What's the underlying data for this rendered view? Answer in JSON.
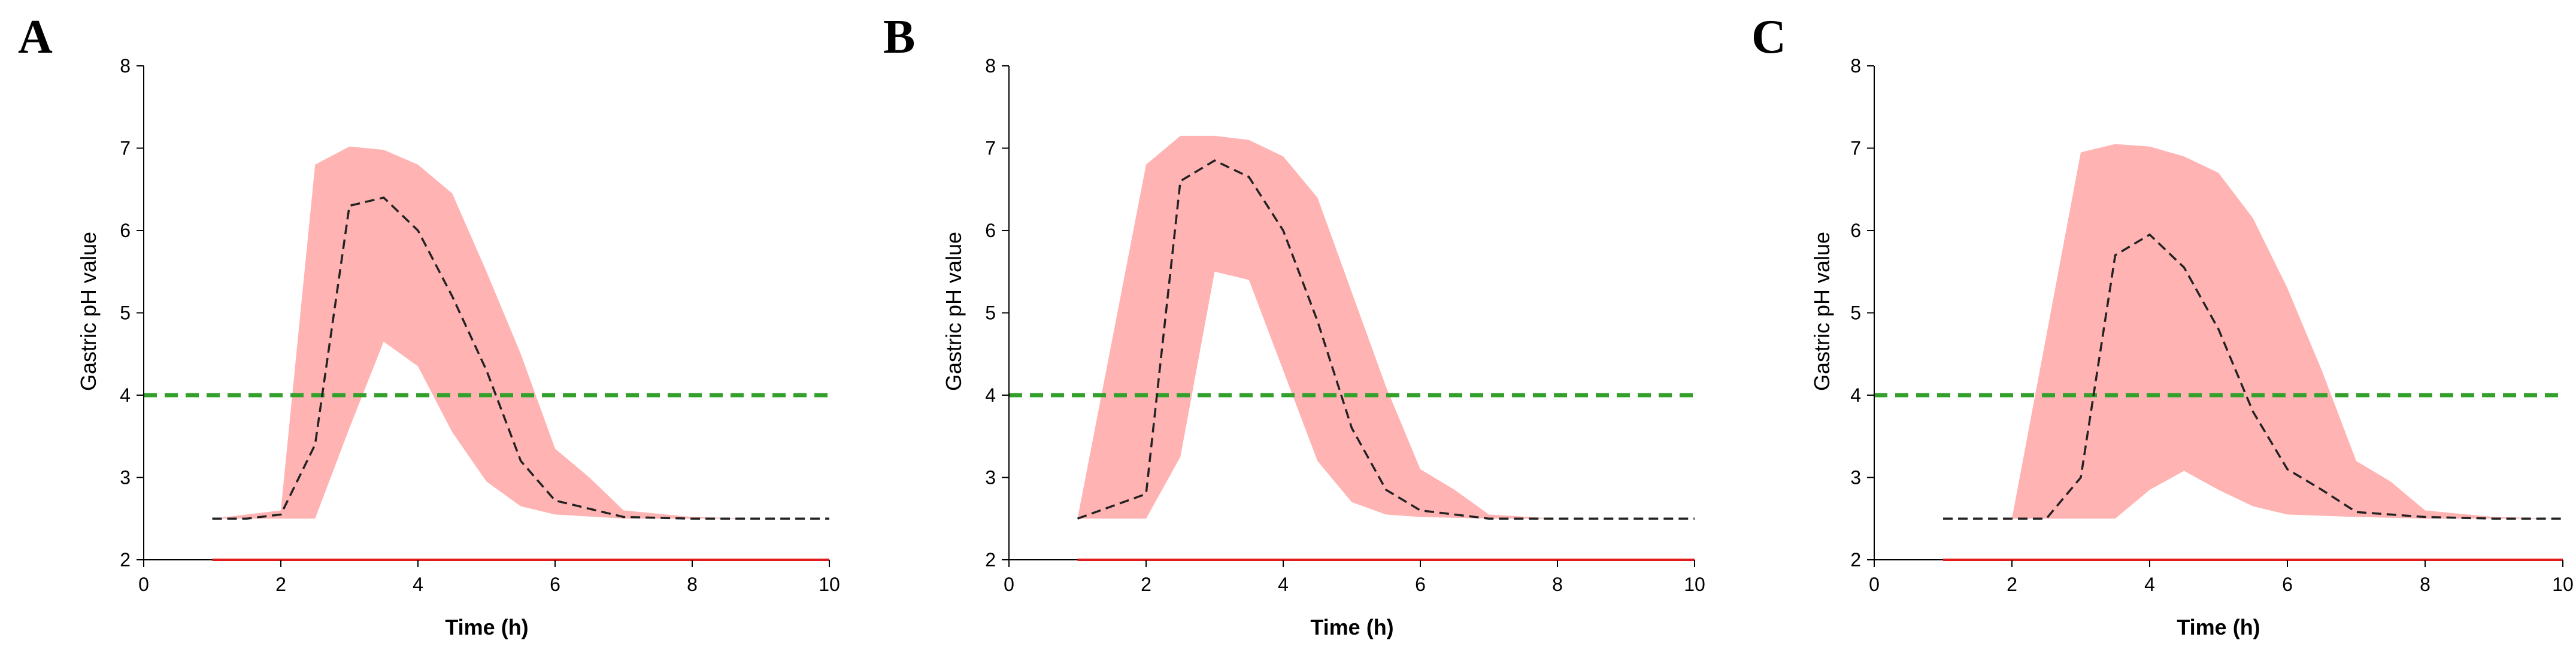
{
  "chart_data": [
    {
      "type": "area",
      "panel_label": "A",
      "xlabel": "Time (h)",
      "ylabel": "Gastric pH value",
      "xlim": [
        0,
        10
      ],
      "ylim": [
        2,
        8
      ],
      "xticks": [
        0,
        2,
        4,
        6,
        8,
        10
      ],
      "yticks": [
        2,
        3,
        4,
        5,
        6,
        7,
        8
      ],
      "band": {
        "color": "#ffb3b3",
        "upper": [
          [
            1,
            2.5
          ],
          [
            1.5,
            2.55
          ],
          [
            2,
            2.6
          ],
          [
            2.5,
            6.8
          ],
          [
            3,
            7.02
          ],
          [
            3.5,
            6.98
          ],
          [
            4,
            6.8
          ],
          [
            4.5,
            6.45
          ],
          [
            5,
            5.5
          ],
          [
            5.5,
            4.5
          ],
          [
            6,
            3.35
          ],
          [
            6.5,
            3.0
          ],
          [
            7,
            2.6
          ],
          [
            8,
            2.52
          ],
          [
            9,
            2.5
          ],
          [
            10,
            2.5
          ]
        ],
        "lower": [
          [
            1,
            2.5
          ],
          [
            1.5,
            2.5
          ],
          [
            2,
            2.5
          ],
          [
            2.5,
            2.5
          ],
          [
            3,
            3.6
          ],
          [
            3.5,
            4.65
          ],
          [
            4,
            4.35
          ],
          [
            4.5,
            3.55
          ],
          [
            5,
            2.95
          ],
          [
            5.5,
            2.65
          ],
          [
            6,
            2.55
          ],
          [
            7,
            2.5
          ],
          [
            8,
            2.5
          ],
          [
            9,
            2.5
          ],
          [
            10,
            2.5
          ]
        ]
      },
      "median": {
        "color": "#222222",
        "points": [
          [
            1,
            2.5
          ],
          [
            1.5,
            2.5
          ],
          [
            2,
            2.55
          ],
          [
            2.5,
            3.4
          ],
          [
            3,
            6.3
          ],
          [
            3.5,
            6.4
          ],
          [
            4,
            6.0
          ],
          [
            4.5,
            5.2
          ],
          [
            5,
            4.3
          ],
          [
            5.5,
            3.2
          ],
          [
            6,
            2.72
          ],
          [
            6.5,
            2.62
          ],
          [
            7,
            2.52
          ],
          [
            8,
            2.5
          ],
          [
            9,
            2.5
          ],
          [
            10,
            2.5
          ]
        ]
      },
      "threshold": {
        "y": 4,
        "color": "#33a02c"
      },
      "baseline": {
        "y": 2,
        "color": "#e31a1c",
        "x_start": 1,
        "x_end": 10
      }
    },
    {
      "type": "area",
      "panel_label": "B",
      "xlabel": "Time (h)",
      "ylabel": "Gastric pH value",
      "xlim": [
        0,
        10
      ],
      "ylim": [
        2,
        8
      ],
      "xticks": [
        0,
        2,
        4,
        6,
        8,
        10
      ],
      "yticks": [
        2,
        3,
        4,
        5,
        6,
        7,
        8
      ],
      "band": {
        "color": "#ffb3b3",
        "upper": [
          [
            1,
            2.5
          ],
          [
            2,
            6.8
          ],
          [
            2.5,
            7.15
          ],
          [
            3,
            7.15
          ],
          [
            3.5,
            7.1
          ],
          [
            4,
            6.9
          ],
          [
            4.5,
            6.4
          ],
          [
            5,
            5.25
          ],
          [
            5.5,
            4.1
          ],
          [
            6,
            3.1
          ],
          [
            6.5,
            2.85
          ],
          [
            7,
            2.55
          ],
          [
            8,
            2.5
          ],
          [
            9,
            2.5
          ],
          [
            10,
            2.5
          ]
        ],
        "lower": [
          [
            1,
            2.5
          ],
          [
            1.5,
            2.5
          ],
          [
            2,
            2.5
          ],
          [
            2.5,
            3.25
          ],
          [
            3,
            5.5
          ],
          [
            3.5,
            5.4
          ],
          [
            4,
            4.3
          ],
          [
            4.5,
            3.2
          ],
          [
            5,
            2.7
          ],
          [
            5.5,
            2.55
          ],
          [
            6,
            2.52
          ],
          [
            7,
            2.5
          ],
          [
            8,
            2.5
          ],
          [
            9,
            2.5
          ],
          [
            10,
            2.5
          ]
        ]
      },
      "median": {
        "color": "#222222",
        "points": [
          [
            1,
            2.5
          ],
          [
            1.5,
            2.65
          ],
          [
            2,
            2.8
          ],
          [
            2.5,
            6.6
          ],
          [
            3,
            6.85
          ],
          [
            3.5,
            6.65
          ],
          [
            4,
            6.0
          ],
          [
            4.5,
            4.9
          ],
          [
            5,
            3.6
          ],
          [
            5.5,
            2.85
          ],
          [
            6,
            2.6
          ],
          [
            6.5,
            2.55
          ],
          [
            7,
            2.5
          ],
          [
            8,
            2.5
          ],
          [
            9,
            2.5
          ],
          [
            10,
            2.5
          ]
        ]
      },
      "threshold": {
        "y": 4,
        "color": "#33a02c"
      },
      "baseline": {
        "y": 2,
        "color": "#e31a1c",
        "x_start": 1,
        "x_end": 10
      }
    },
    {
      "type": "area",
      "panel_label": "C",
      "xlabel": "Time (h)",
      "ylabel": "Gastric pH value",
      "xlim": [
        0,
        10
      ],
      "ylim": [
        2,
        8
      ],
      "xticks": [
        0,
        2,
        4,
        6,
        8,
        10
      ],
      "yticks": [
        2,
        3,
        4,
        5,
        6,
        7,
        8
      ],
      "band": {
        "color": "#ffb3b3",
        "upper": [
          [
            2,
            2.5
          ],
          [
            3,
            6.95
          ],
          [
            3.5,
            7.05
          ],
          [
            4,
            7.02
          ],
          [
            4.5,
            6.9
          ],
          [
            5,
            6.7
          ],
          [
            5.5,
            6.15
          ],
          [
            6,
            5.3
          ],
          [
            6.5,
            4.3
          ],
          [
            7,
            3.2
          ],
          [
            7.5,
            2.95
          ],
          [
            8,
            2.6
          ],
          [
            9,
            2.52
          ],
          [
            10,
            2.5
          ]
        ],
        "lower": [
          [
            2,
            2.5
          ],
          [
            2.5,
            2.5
          ],
          [
            3,
            2.5
          ],
          [
            3.5,
            2.5
          ],
          [
            4,
            2.85
          ],
          [
            4.5,
            3.08
          ],
          [
            5,
            2.85
          ],
          [
            5.5,
            2.65
          ],
          [
            6,
            2.55
          ],
          [
            7,
            2.52
          ],
          [
            8,
            2.5
          ],
          [
            9,
            2.5
          ],
          [
            10,
            2.5
          ]
        ]
      },
      "median": {
        "color": "#222222",
        "points": [
          [
            1,
            2.5
          ],
          [
            2,
            2.5
          ],
          [
            2.5,
            2.5
          ],
          [
            3,
            3.0
          ],
          [
            3.5,
            5.7
          ],
          [
            4,
            5.95
          ],
          [
            4.5,
            5.55
          ],
          [
            5,
            4.8
          ],
          [
            5.5,
            3.8
          ],
          [
            6,
            3.1
          ],
          [
            6.5,
            2.85
          ],
          [
            7,
            2.58
          ],
          [
            8,
            2.52
          ],
          [
            9,
            2.5
          ],
          [
            10,
            2.5
          ]
        ]
      },
      "threshold": {
        "y": 4,
        "color": "#33a02c"
      },
      "baseline": {
        "y": 2,
        "color": "#e31a1c",
        "x_start": 1,
        "x_end": 10
      }
    }
  ]
}
